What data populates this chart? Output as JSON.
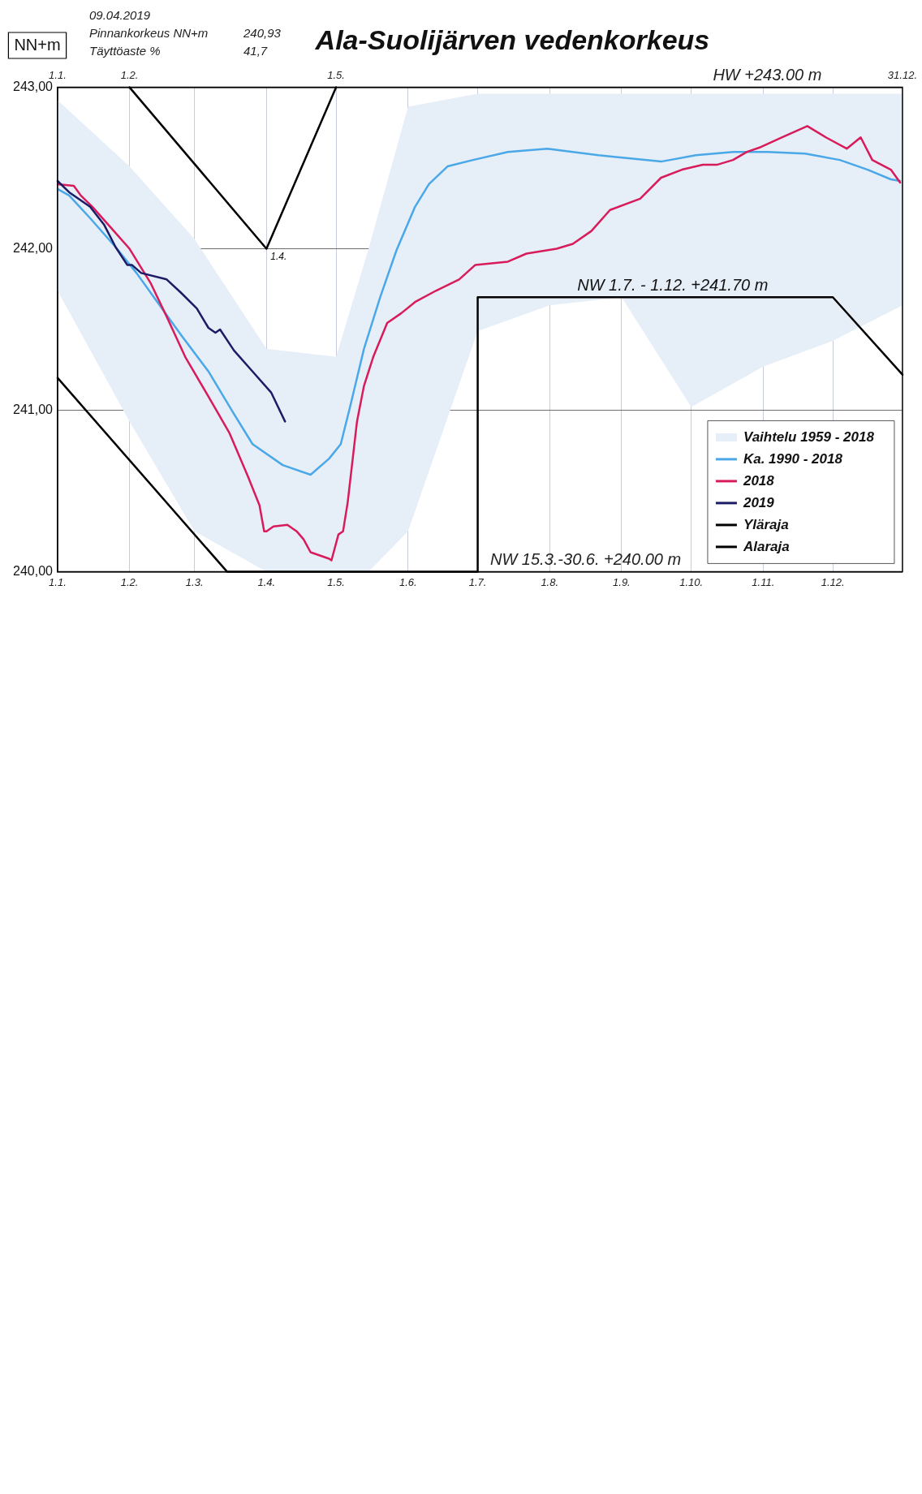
{
  "chart_data": {
    "type": "line",
    "title": "Ala-Suolijärven vedenkorkeus",
    "ylabel": "NN+m",
    "xlim": [
      "--01-01",
      "--12-31"
    ],
    "xticks": [
      {
        "value": "--01-01",
        "label": "1.1."
      },
      {
        "value": "--02-01",
        "label": "1.2."
      },
      {
        "value": "--03-01",
        "label": "1.3."
      },
      {
        "value": "--04-01",
        "label": "1.4."
      },
      {
        "value": "--05-01",
        "label": "1.5."
      },
      {
        "value": "--06-01",
        "label": "1.6."
      },
      {
        "value": "--07-01",
        "label": "1.7."
      },
      {
        "value": "--08-01",
        "label": "1.8."
      },
      {
        "value": "--09-01",
        "label": "1.9."
      },
      {
        "value": "--10-01",
        "label": "1.10."
      },
      {
        "value": "--11-01",
        "label": "1.11."
      },
      {
        "value": "--12-01",
        "label": "1.12."
      }
    ],
    "x2lim": [
      "--01-01",
      "--12-31"
    ],
    "x2ticks": [
      {
        "value": "--01-01",
        "label": "1.1."
      },
      {
        "value": "--02-01",
        "label": "1.2."
      },
      {
        "value": "--05-01",
        "label": "1.5."
      },
      {
        "value": "--12-31",
        "label": "31.12."
      }
    ],
    "ylim": [
      240,
      243
    ],
    "yticks": [
      {
        "value": 240,
        "label": "240,00"
      },
      {
        "value": 241,
        "label": "241,00"
      },
      {
        "value": 242,
        "label": "242,00"
      },
      {
        "value": 243,
        "label": "243,00"
      }
    ],
    "grid": true,
    "legend": "bottom right",
    "annotations": [
      "09.04.2019",
      "Pinnankorkeus NN+m",
      "Täyttöaste %",
      "240,93",
      "41,7",
      "HW +243.00 m",
      {
        "text": "NW 1.7. - 1.12. +241.70 m",
        "x": "--09-23",
        "y": 241.7
      },
      "NW 15.3.-30.6. +240.00 m",
      {
        "text": "1.4.",
        "x": "--04-01",
        "y": 242
      }
    ],
    "series": [
      {
        "name": "Vaihtelu 1959 - 2018",
        "type": "area",
        "color": "#e6eef8",
        "x": [
          "--01-01",
          "--02-01",
          "--03-01",
          "--04-01",
          "--05-01",
          "--05-15",
          "--06-01",
          "--07-01",
          "--08-01",
          "--09-01",
          "--10-01",
          "--11-01",
          "--12-01",
          "--12-31"
        ],
        "values": [
          null,
          null,
          null,
          null,
          null,
          null,
          null,
          null,
          null,
          null,
          null,
          null,
          null,
          null
        ],
        "lower": [
          241.74,
          240.93,
          240.25,
          240.0,
          240.0,
          240.0,
          240.25,
          241.49,
          241.65,
          241.7,
          241.02,
          241.27,
          241.43,
          241.65
        ],
        "upper": [
          242.92,
          242.51,
          242.06,
          241.38,
          241.33,
          242.0,
          242.88,
          242.96,
          242.96,
          242.96,
          242.96,
          242.96,
          242.96,
          242.96
        ]
      },
      {
        "name": "Ka. 1990 - 2018",
        "type": "line",
        "color": "#4aa8e8",
        "x": [
          "--01-01",
          "--01-06",
          "--01-15",
          "--01-26",
          "--02-04",
          "--02-13",
          "--02-23",
          "--03-07",
          "--03-17",
          "--03-26",
          "--04-08",
          "--04-20",
          "--04-28",
          "--05-03",
          "--05-07",
          "--05-13",
          "--05-20",
          "--05-27",
          "--06-04",
          "--06-10",
          "--06-18",
          "--06-29",
          "--07-14",
          "--07-31",
          "--08-22",
          "--09-18",
          "--10-03",
          "--10-19",
          "--11-03",
          "--11-19",
          "--12-04",
          "--12-16",
          "--12-26",
          "--12-30"
        ],
        "values": [
          242.37,
          242.33,
          242.19,
          242.01,
          241.85,
          241.67,
          241.47,
          241.24,
          241.0,
          240.79,
          240.66,
          240.6,
          240.7,
          240.79,
          241.02,
          241.38,
          241.7,
          241.99,
          242.26,
          242.4,
          242.51,
          242.55,
          242.6,
          242.62,
          242.58,
          242.54,
          242.58,
          242.6,
          242.6,
          242.59,
          242.55,
          242.49,
          242.43,
          242.42
        ]
      },
      {
        "name": "2018",
        "type": "line",
        "color": "#d81b5a",
        "x": [
          "--01-01",
          "--01-08",
          "--01-11",
          "--01-16",
          "--01-24",
          "--02-01",
          "--02-10",
          "--02-17",
          "--02-25",
          "--03-08",
          "--03-16",
          "--03-24",
          "--03-29",
          "--03-31",
          "--04-01",
          "--04-04",
          "--04-10",
          "--04-14",
          "--04-17",
          "--04-20",
          "--04-28",
          "--04-29",
          "--05-02",
          "--05-04",
          "--05-06",
          "--05-10",
          "--05-13",
          "--05-17",
          "--05-23",
          "--05-29",
          "--06-04",
          "--06-13",
          "--06-23",
          "--06-30",
          "--07-14",
          "--07-22",
          "--08-04",
          "--08-11",
          "--08-19",
          "--08-27",
          "--09-09",
          "--09-18",
          "--09-27",
          "--10-06",
          "--10-12",
          "--10-19",
          "--10-25",
          "--10-31",
          "--11-09",
          "--11-20",
          "--11-28",
          "--12-07",
          "--12-13",
          "--12-18",
          "--12-26",
          "--12-30"
        ],
        "values": [
          242.4,
          242.39,
          242.33,
          242.26,
          242.13,
          242.0,
          241.79,
          241.58,
          241.33,
          241.06,
          240.86,
          240.59,
          240.41,
          240.25,
          240.25,
          240.28,
          240.29,
          240.25,
          240.2,
          240.12,
          240.08,
          240.07,
          240.23,
          240.25,
          240.43,
          240.93,
          241.15,
          241.33,
          241.54,
          241.6,
          241.67,
          241.74,
          241.81,
          241.9,
          241.92,
          241.97,
          242.0,
          242.03,
          242.11,
          242.24,
          242.31,
          242.44,
          242.49,
          242.52,
          242.52,
          242.55,
          242.6,
          242.63,
          242.69,
          242.76,
          242.69,
          242.62,
          242.69,
          242.55,
          242.49,
          242.41
        ]
      },
      {
        "name": "2019",
        "type": "line",
        "color": "#1c1c66",
        "x": [
          "--01-01",
          "--01-06",
          "--01-15",
          "--01-21",
          "--01-26",
          "--01-31",
          "--02-02",
          "--02-06",
          "--02-17",
          "--02-23",
          "--03-02",
          "--03-07",
          "--03-10",
          "--03-12",
          "--03-18",
          "--03-26",
          "--04-03",
          "--04-09"
        ],
        "values": [
          242.42,
          242.35,
          242.26,
          242.15,
          242.01,
          241.9,
          241.9,
          241.85,
          241.81,
          241.73,
          241.63,
          241.51,
          241.48,
          241.5,
          241.37,
          241.24,
          241.11,
          240.93
        ]
      },
      {
        "name": "Yläraja",
        "type": "line",
        "color": "#000000",
        "x": [
          "--02-01",
          "--04-01",
          "--05-01"
        ],
        "values": [
          243,
          242,
          243
        ]
      },
      {
        "name": "Alaraja",
        "type": "line",
        "color": "#000000",
        "x": [
          "--01-01",
          "--03-15",
          "--07-01",
          "--07-01",
          "--12-01",
          "--12-31"
        ],
        "values": [
          241.2,
          240,
          240,
          241.7,
          241.7,
          241.22
        ]
      }
    ]
  }
}
